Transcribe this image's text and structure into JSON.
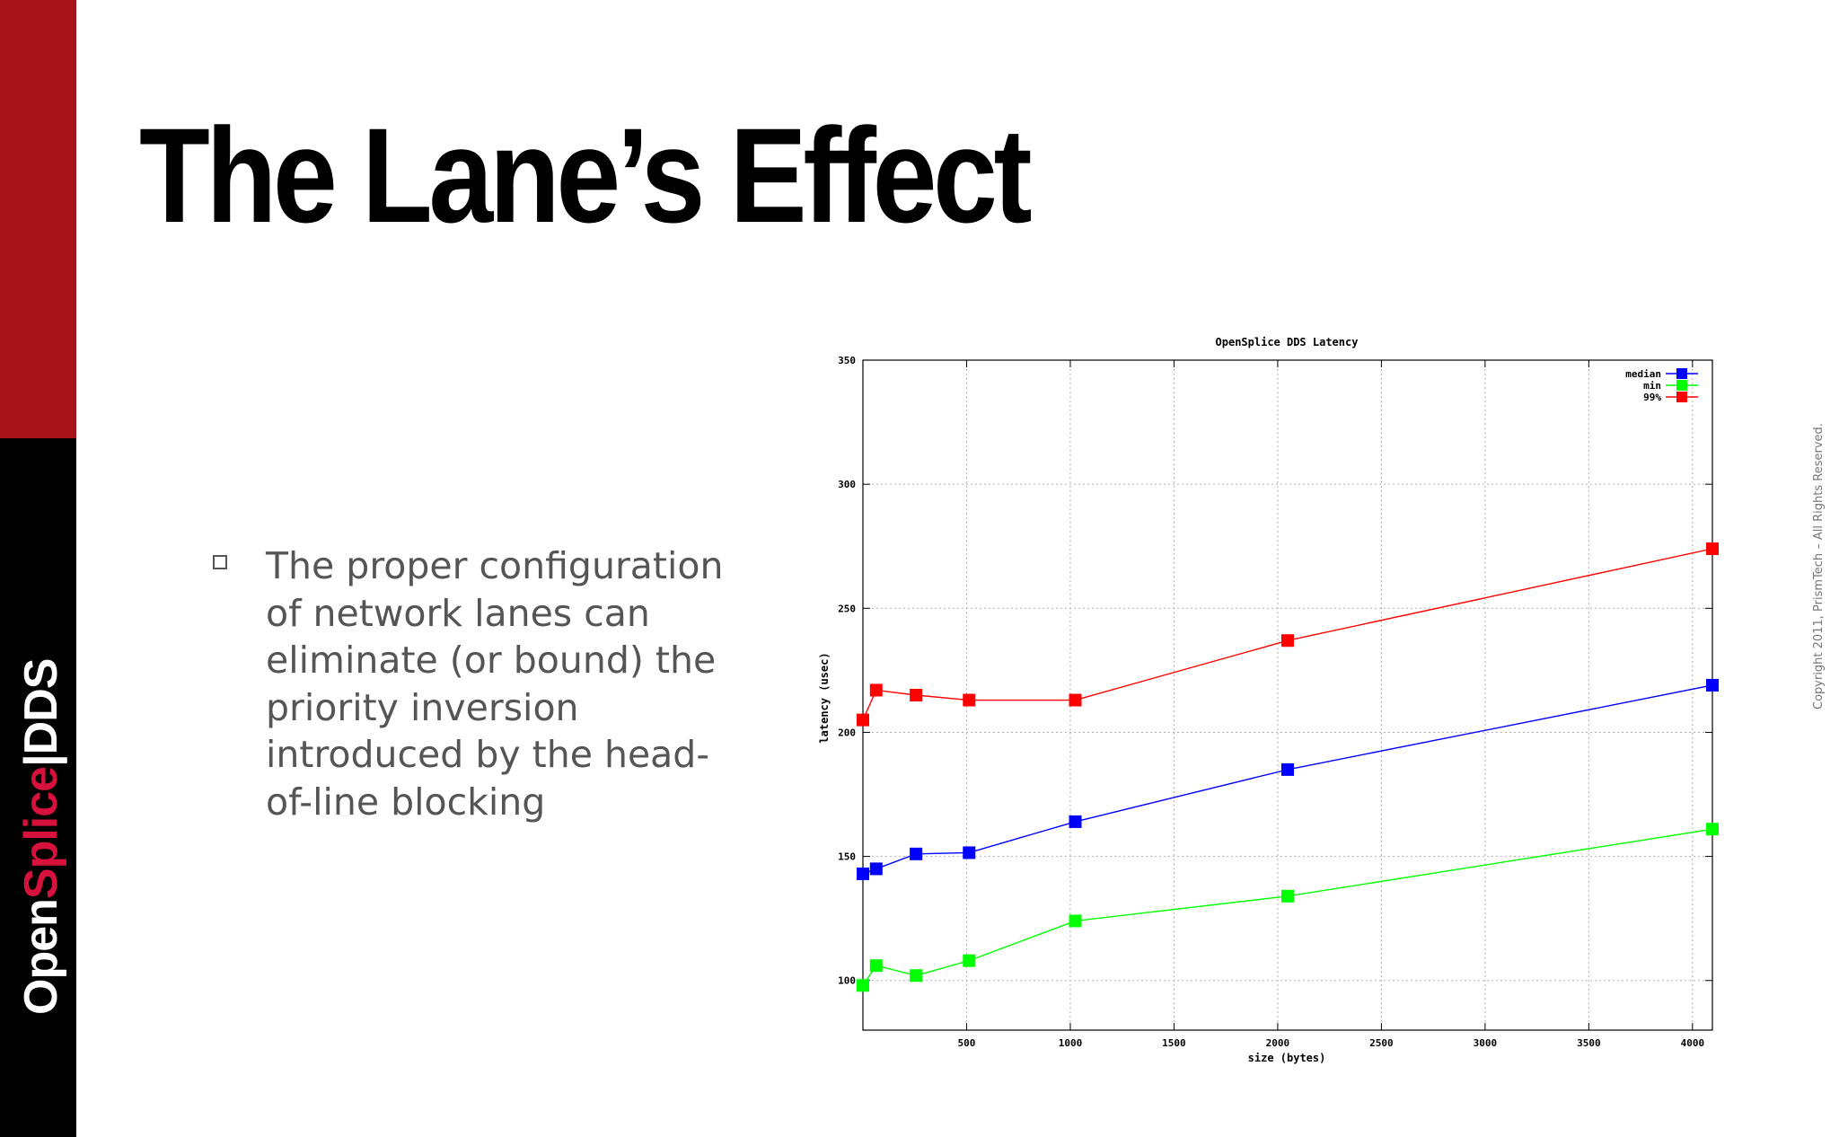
{
  "slide": {
    "title": "The Lane’s Effect",
    "bullet": "The proper configuration of network lanes can eliminate (or bound) the priority inversion introduced by the head-of-line blocking",
    "copyright": "Copyright 2011, PrismTech –  All Rights Reserved.",
    "logo": {
      "part1": "Open",
      "part2": "Splice",
      "separator": "|",
      "part3": "DDS"
    },
    "colors": {
      "brand_red": "#a6141a",
      "logo_accent": "#d6113b"
    }
  },
  "chart_data": {
    "type": "line",
    "title": "OpenSplice DDS Latency",
    "xlabel": "size (bytes)",
    "ylabel": "latency (usec)",
    "xlim": [
      0,
      4096
    ],
    "ylim": [
      80,
      350
    ],
    "xticks": [
      500,
      1000,
      1500,
      2000,
      2500,
      3000,
      3500,
      4000
    ],
    "yticks": [
      100,
      150,
      200,
      250,
      300,
      350
    ],
    "grid": true,
    "legend_position": "top-right",
    "x": [
      0,
      64,
      256,
      512,
      1024,
      2048,
      4096
    ],
    "series": [
      {
        "name": "median",
        "color": "#0000ff",
        "values": [
          143,
          145,
          151,
          151.5,
          164,
          185,
          219
        ]
      },
      {
        "name": "min",
        "color": "#00ff00",
        "values": [
          98,
          106,
          102,
          108,
          124,
          134,
          161
        ]
      },
      {
        "name": "99%",
        "color": "#ff0000",
        "values": [
          205,
          217,
          215,
          213,
          213,
          237,
          274
        ]
      }
    ]
  }
}
